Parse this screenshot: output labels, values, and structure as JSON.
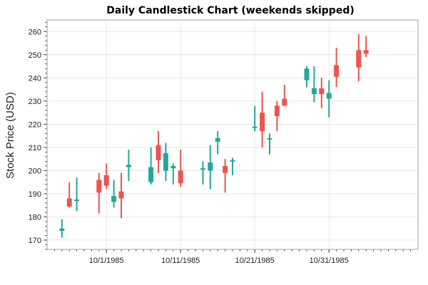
{
  "chart_data": {
    "type": "candlestick",
    "title": "Daily Candlestick Chart (weekends skipped)",
    "xlabel": "",
    "ylabel": "Stock Price (USD)",
    "ylim": [
      166,
      265
    ],
    "yticks": [
      170,
      180,
      190,
      200,
      210,
      220,
      230,
      240,
      250,
      260
    ],
    "xlim": [
      "1985-09-23",
      "1985-11-12"
    ],
    "xticks": [
      {
        "date": "1985-10-01",
        "label": "10/1/1985"
      },
      {
        "date": "1985-10-11",
        "label": "10/11/1985"
      },
      {
        "date": "1985-10-21",
        "label": "10/21/1985"
      },
      {
        "date": "1985-10-31",
        "label": "10/31/1985"
      }
    ],
    "grid": true,
    "colors": {
      "up": "#26a69a",
      "down": "#ef5350"
    },
    "candles": [
      {
        "date": "1985-09-25",
        "open": 174.0,
        "high": 179.0,
        "low": 171.0,
        "close": 175.0
      },
      {
        "date": "1985-09-26",
        "open": 188.0,
        "high": 195.0,
        "low": 184.0,
        "close": 184.5
      },
      {
        "date": "1985-09-27",
        "open": 187.5,
        "high": 197.0,
        "low": 182.5,
        "close": 187.5
      },
      {
        "date": "1985-09-30",
        "open": 196.0,
        "high": 199.0,
        "low": 181.5,
        "close": 190.5
      },
      {
        "date": "1985-10-01",
        "open": 198.0,
        "high": 203.0,
        "low": 192.0,
        "close": 193.5
      },
      {
        "date": "1985-10-02",
        "open": 186.5,
        "high": 196.0,
        "low": 184.0,
        "close": 189.0
      },
      {
        "date": "1985-10-03",
        "open": 191.0,
        "high": 199.0,
        "low": 179.5,
        "close": 188.0
      },
      {
        "date": "1985-10-04",
        "open": 201.5,
        "high": 209.0,
        "low": 195.5,
        "close": 202.5
      },
      {
        "date": "1985-10-07",
        "open": 195.0,
        "high": 210.0,
        "low": 194.0,
        "close": 201.5
      },
      {
        "date": "1985-10-08",
        "open": 211.0,
        "high": 217.0,
        "low": 199.0,
        "close": 204.5
      },
      {
        "date": "1985-10-09",
        "open": 200.0,
        "high": 212.0,
        "low": 195.5,
        "close": 207.5
      },
      {
        "date": "1985-10-10",
        "open": 201.0,
        "high": 203.0,
        "low": 194.0,
        "close": 202.0
      },
      {
        "date": "1985-10-11",
        "open": 200.0,
        "high": 209.0,
        "low": 193.0,
        "close": 194.5
      },
      {
        "date": "1985-10-14",
        "open": 201.0,
        "high": 204.0,
        "low": 194.0,
        "close": 201.0
      },
      {
        "date": "1985-10-15",
        "open": 200.0,
        "high": 211.0,
        "low": 192.0,
        "close": 203.5
      },
      {
        "date": "1985-10-16",
        "open": 212.5,
        "high": 217.0,
        "low": 207.0,
        "close": 214.0
      },
      {
        "date": "1985-10-17",
        "open": 202.0,
        "high": 205.0,
        "low": 190.5,
        "close": 199.0
      },
      {
        "date": "1985-10-18",
        "open": 204.5,
        "high": 205.5,
        "low": 198.0,
        "close": 204.5
      },
      {
        "date": "1985-10-21",
        "open": 219.0,
        "high": 228.0,
        "low": 217.0,
        "close": 219.0
      },
      {
        "date": "1985-10-22",
        "open": 225.0,
        "high": 234.0,
        "low": 210.0,
        "close": 217.0
      },
      {
        "date": "1985-10-23",
        "open": 214.0,
        "high": 216.0,
        "low": 207.0,
        "close": 214.0
      },
      {
        "date": "1985-10-24",
        "open": 228.0,
        "high": 230.0,
        "low": 217.0,
        "close": 223.5
      },
      {
        "date": "1985-10-25",
        "open": 231.0,
        "high": 237.0,
        "low": 228.0,
        "close": 228.0
      },
      {
        "date": "1985-10-28",
        "open": 239.0,
        "high": 245.0,
        "low": 236.0,
        "close": 244.0
      },
      {
        "date": "1985-10-29",
        "open": 233.0,
        "high": 245.0,
        "low": 229.5,
        "close": 235.5
      },
      {
        "date": "1985-10-30",
        "open": 235.5,
        "high": 240.0,
        "low": 227.0,
        "close": 233.0
      },
      {
        "date": "1985-10-31",
        "open": 231.0,
        "high": 239.0,
        "low": 223.0,
        "close": 233.5
      },
      {
        "date": "1985-11-01",
        "open": 245.5,
        "high": 253.0,
        "low": 236.0,
        "close": 240.5
      },
      {
        "date": "1985-11-04",
        "open": 252.0,
        "high": 259.0,
        "low": 238.5,
        "close": 244.5
      },
      {
        "date": "1985-11-05",
        "open": 252.0,
        "high": 258.0,
        "low": 249.0,
        "close": 250.5
      }
    ]
  }
}
